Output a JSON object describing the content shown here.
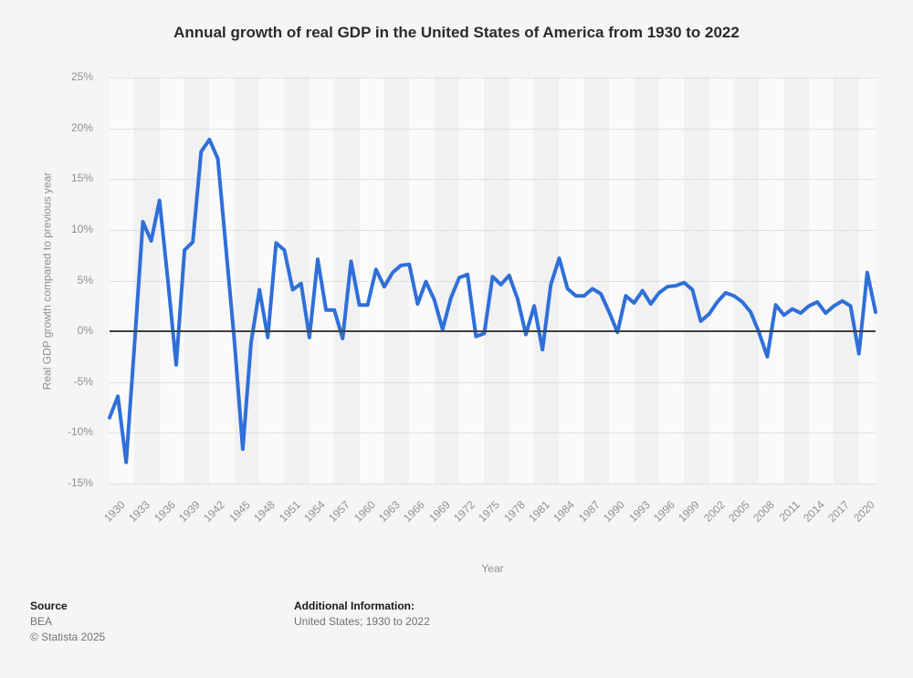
{
  "title": "Annual growth of real GDP in the United States of America from 1930 to 2022",
  "chart_data": {
    "type": "line",
    "title": "Annual growth of real GDP in the United States of America from 1930 to 2022",
    "xlabel": "Year",
    "ylabel": "Real GDP growth compared to previous year",
    "ylim": [
      -15,
      25
    ],
    "yticks": [
      25,
      20,
      15,
      10,
      5,
      0,
      -5,
      -10,
      -15
    ],
    "ytick_labels": [
      "25%",
      "20%",
      "15%",
      "10%",
      "5%",
      "0%",
      "-5%",
      "-10%",
      "-15%"
    ],
    "xticks": [
      1930,
      1933,
      1936,
      1939,
      1942,
      1945,
      1948,
      1951,
      1954,
      1957,
      1960,
      1963,
      1966,
      1969,
      1972,
      1975,
      1978,
      1981,
      1984,
      1987,
      1990,
      1993,
      1996,
      1999,
      2002,
      2005,
      2008,
      2011,
      2014,
      2017,
      2020
    ],
    "grid": "horizontal-dotted, solid zero baseline, alternating 3-year vertical bands",
    "legend": "none",
    "x": [
      1930,
      1931,
      1932,
      1933,
      1934,
      1935,
      1936,
      1937,
      1938,
      1939,
      1940,
      1941,
      1942,
      1943,
      1944,
      1945,
      1946,
      1947,
      1948,
      1949,
      1950,
      1951,
      1952,
      1953,
      1954,
      1955,
      1956,
      1957,
      1958,
      1959,
      1960,
      1961,
      1962,
      1963,
      1964,
      1965,
      1966,
      1967,
      1968,
      1969,
      1970,
      1971,
      1972,
      1973,
      1974,
      1975,
      1976,
      1977,
      1978,
      1979,
      1980,
      1981,
      1982,
      1983,
      1984,
      1985,
      1986,
      1987,
      1988,
      1989,
      1990,
      1991,
      1992,
      1993,
      1994,
      1995,
      1996,
      1997,
      1998,
      1999,
      2000,
      2001,
      2002,
      2003,
      2004,
      2005,
      2006,
      2007,
      2008,
      2009,
      2010,
      2011,
      2012,
      2013,
      2014,
      2015,
      2016,
      2017,
      2018,
      2019,
      2020,
      2021,
      2022
    ],
    "values": [
      -8.5,
      -6.4,
      -12.9,
      -1.2,
      10.8,
      8.9,
      12.9,
      5.1,
      -3.3,
      8.0,
      8.8,
      17.7,
      18.9,
      17.0,
      8.0,
      -1.0,
      -11.6,
      -1.1,
      4.1,
      -0.6,
      8.7,
      8.0,
      4.1,
      4.7,
      -0.6,
      7.1,
      2.1,
      2.1,
      -0.7,
      6.9,
      2.6,
      2.6,
      6.1,
      4.4,
      5.8,
      6.5,
      6.6,
      2.7,
      4.9,
      3.1,
      0.2,
      3.3,
      5.3,
      5.6,
      -0.5,
      -0.2,
      5.4,
      4.6,
      5.5,
      3.2,
      -0.3,
      2.5,
      -1.8,
      4.6,
      7.2,
      4.2,
      3.5,
      3.5,
      4.2,
      3.7,
      1.9,
      -0.1,
      3.5,
      2.8,
      4.0,
      2.7,
      3.8,
      4.4,
      4.5,
      4.8,
      4.1,
      1.0,
      1.7,
      2.9,
      3.8,
      3.5,
      2.9,
      1.9,
      -0.1,
      -2.5,
      2.6,
      1.6,
      2.2,
      1.8,
      2.5,
      2.9,
      1.8,
      2.5,
      3.0,
      2.5,
      -2.2,
      5.8,
      1.9
    ]
  },
  "colors": {
    "background": "#f5f5f5",
    "band_light": "#fafafa",
    "band_dark": "#f1f1f1",
    "gridline": "#c9c9c9",
    "zero_line": "#404040",
    "line": "#2f6fd9",
    "title_text": "#2b2b2b",
    "axis_text": "#8f8f8f"
  },
  "footer": {
    "source_label": "Source",
    "source_value": "BEA",
    "copyright": "© Statista 2025",
    "additional_label": "Additional Information:",
    "additional_value": "United States; 1930 to 2022"
  }
}
